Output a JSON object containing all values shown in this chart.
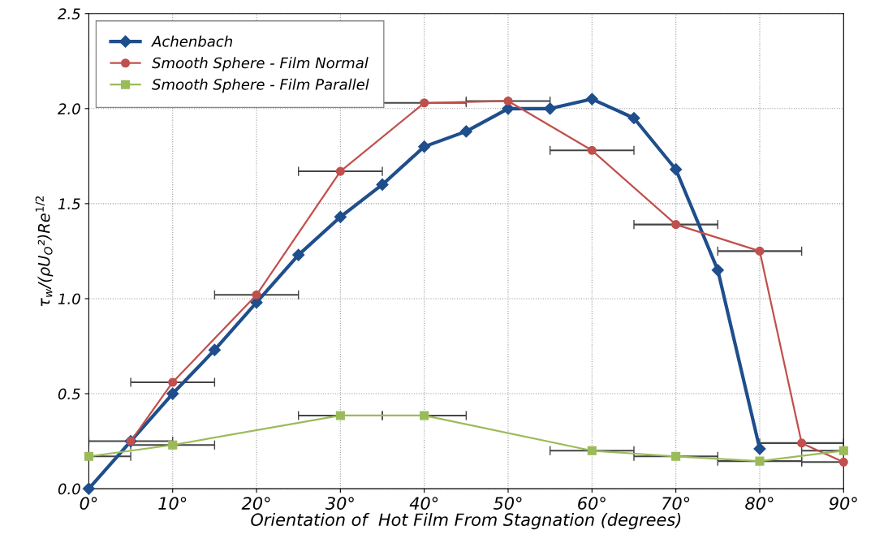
{
  "chart_data": {
    "type": "line",
    "xlabel": "Orientation of  Hot Film From Stagnation (degrees)",
    "ylabel": "τ$_{w}$/(ρU$_{O}$²)Re$^{1/2}$",
    "xlim": [
      0,
      90
    ],
    "xticks": [
      {
        "value": 0,
        "label": "0°"
      },
      {
        "value": 10,
        "label": "10°"
      },
      {
        "value": 20,
        "label": "20°"
      },
      {
        "value": 30,
        "label": "30°"
      },
      {
        "value": 40,
        "label": "40°"
      },
      {
        "value": 50,
        "label": "50°"
      },
      {
        "value": 60,
        "label": "60°"
      },
      {
        "value": 70,
        "label": "70°"
      },
      {
        "value": 80,
        "label": "80°"
      },
      {
        "value": 90,
        "label": "90°"
      }
    ],
    "ylim": [
      0,
      2.5
    ],
    "yticks": [
      {
        "value": 0,
        "label": "0.0"
      },
      {
        "value": 0.5,
        "label": "0.5"
      },
      {
        "value": 1,
        "label": "1.0"
      },
      {
        "value": 1.5,
        "label": "1.5"
      },
      {
        "value": 2,
        "label": "2.0"
      },
      {
        "value": 2.5,
        "label": "2.5"
      }
    ],
    "grid": true,
    "legend": "top left",
    "line_style": "solid",
    "series": [
      {
        "name": "Achenbach",
        "color": "#1f4e8c",
        "marker": "diamond",
        "x": [
          0,
          5,
          10,
          15,
          20,
          25,
          30,
          35,
          40,
          45,
          50,
          55,
          60,
          65,
          70,
          75,
          80
        ],
        "values": [
          0,
          0.25,
          0.5,
          0.73,
          0.98,
          1.23,
          1.43,
          1.6,
          1.8,
          1.88,
          2.0,
          2.0,
          2.05,
          1.95,
          1.68,
          1.15,
          0.21
        ]
      },
      {
        "name": "Smooth Sphere - Film Normal",
        "color": "#c0504d",
        "marker": "circle",
        "x": [
          5,
          10,
          20,
          30,
          40,
          50,
          60,
          70,
          80,
          85,
          90
        ],
        "values": [
          0.25,
          0.56,
          1.02,
          1.67,
          2.03,
          2.04,
          1.78,
          1.39,
          1.25,
          0.24,
          0.14
        ],
        "xerrors": [
          5,
          5,
          5,
          5,
          5,
          5,
          5,
          5,
          5,
          5,
          [
            85,
            90
          ]
        ]
      },
      {
        "name": "Smooth Sphere - Film Parallel",
        "color": "#9bbb59",
        "marker": "square",
        "x": [
          0,
          10,
          30,
          40,
          60,
          70,
          80,
          90
        ],
        "values": [
          0.17,
          0.23,
          0.385,
          0.385,
          0.2,
          0.17,
          0.145,
          0.2
        ],
        "xerrors": [
          [
            0,
            5
          ],
          5,
          5,
          5,
          5,
          5,
          5,
          [
            85,
            90
          ]
        ]
      }
    ]
  }
}
